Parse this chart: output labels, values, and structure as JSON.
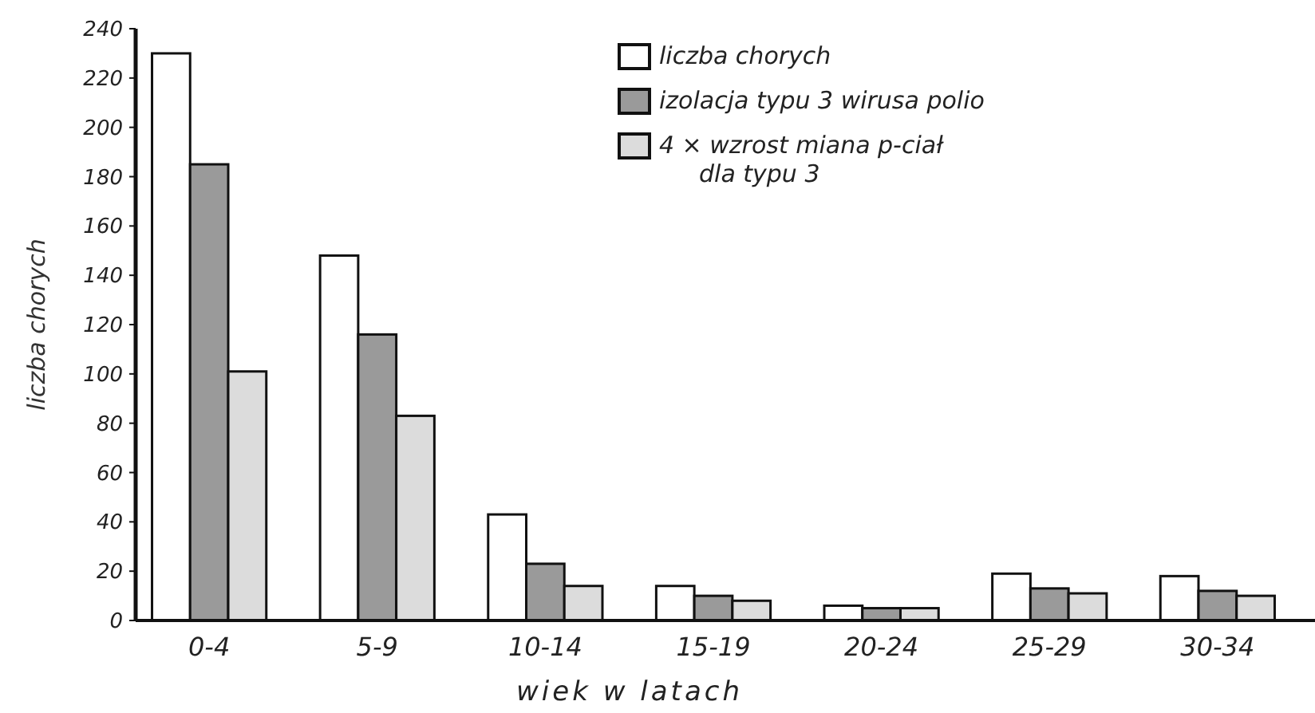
{
  "chart_data": {
    "type": "bar",
    "xlabel": "wiek w latach",
    "ylabel": "liczba chorych",
    "categories": [
      "0-4",
      "5-9",
      "10-14",
      "15-19",
      "20-24",
      "25-29",
      "30-34"
    ],
    "series": [
      {
        "name": "liczba chorych",
        "color": "#ffffff",
        "values": [
          230,
          148,
          43,
          14,
          6,
          19,
          18
        ]
      },
      {
        "name": "izolacja typu 3 wirusa polio",
        "color": "#9a9a9a",
        "values": [
          185,
          116,
          23,
          10,
          5,
          13,
          12
        ]
      },
      {
        "name": "4 × wzrost miana p-ciał dla typu 3",
        "color": "#dcdcdc",
        "values": [
          101,
          83,
          14,
          8,
          5,
          11,
          10
        ]
      }
    ],
    "ylim": [
      0,
      240
    ],
    "yticks": [
      0,
      20,
      40,
      60,
      80,
      100,
      120,
      140,
      160,
      180,
      200,
      220,
      240
    ],
    "legend": "top right"
  }
}
